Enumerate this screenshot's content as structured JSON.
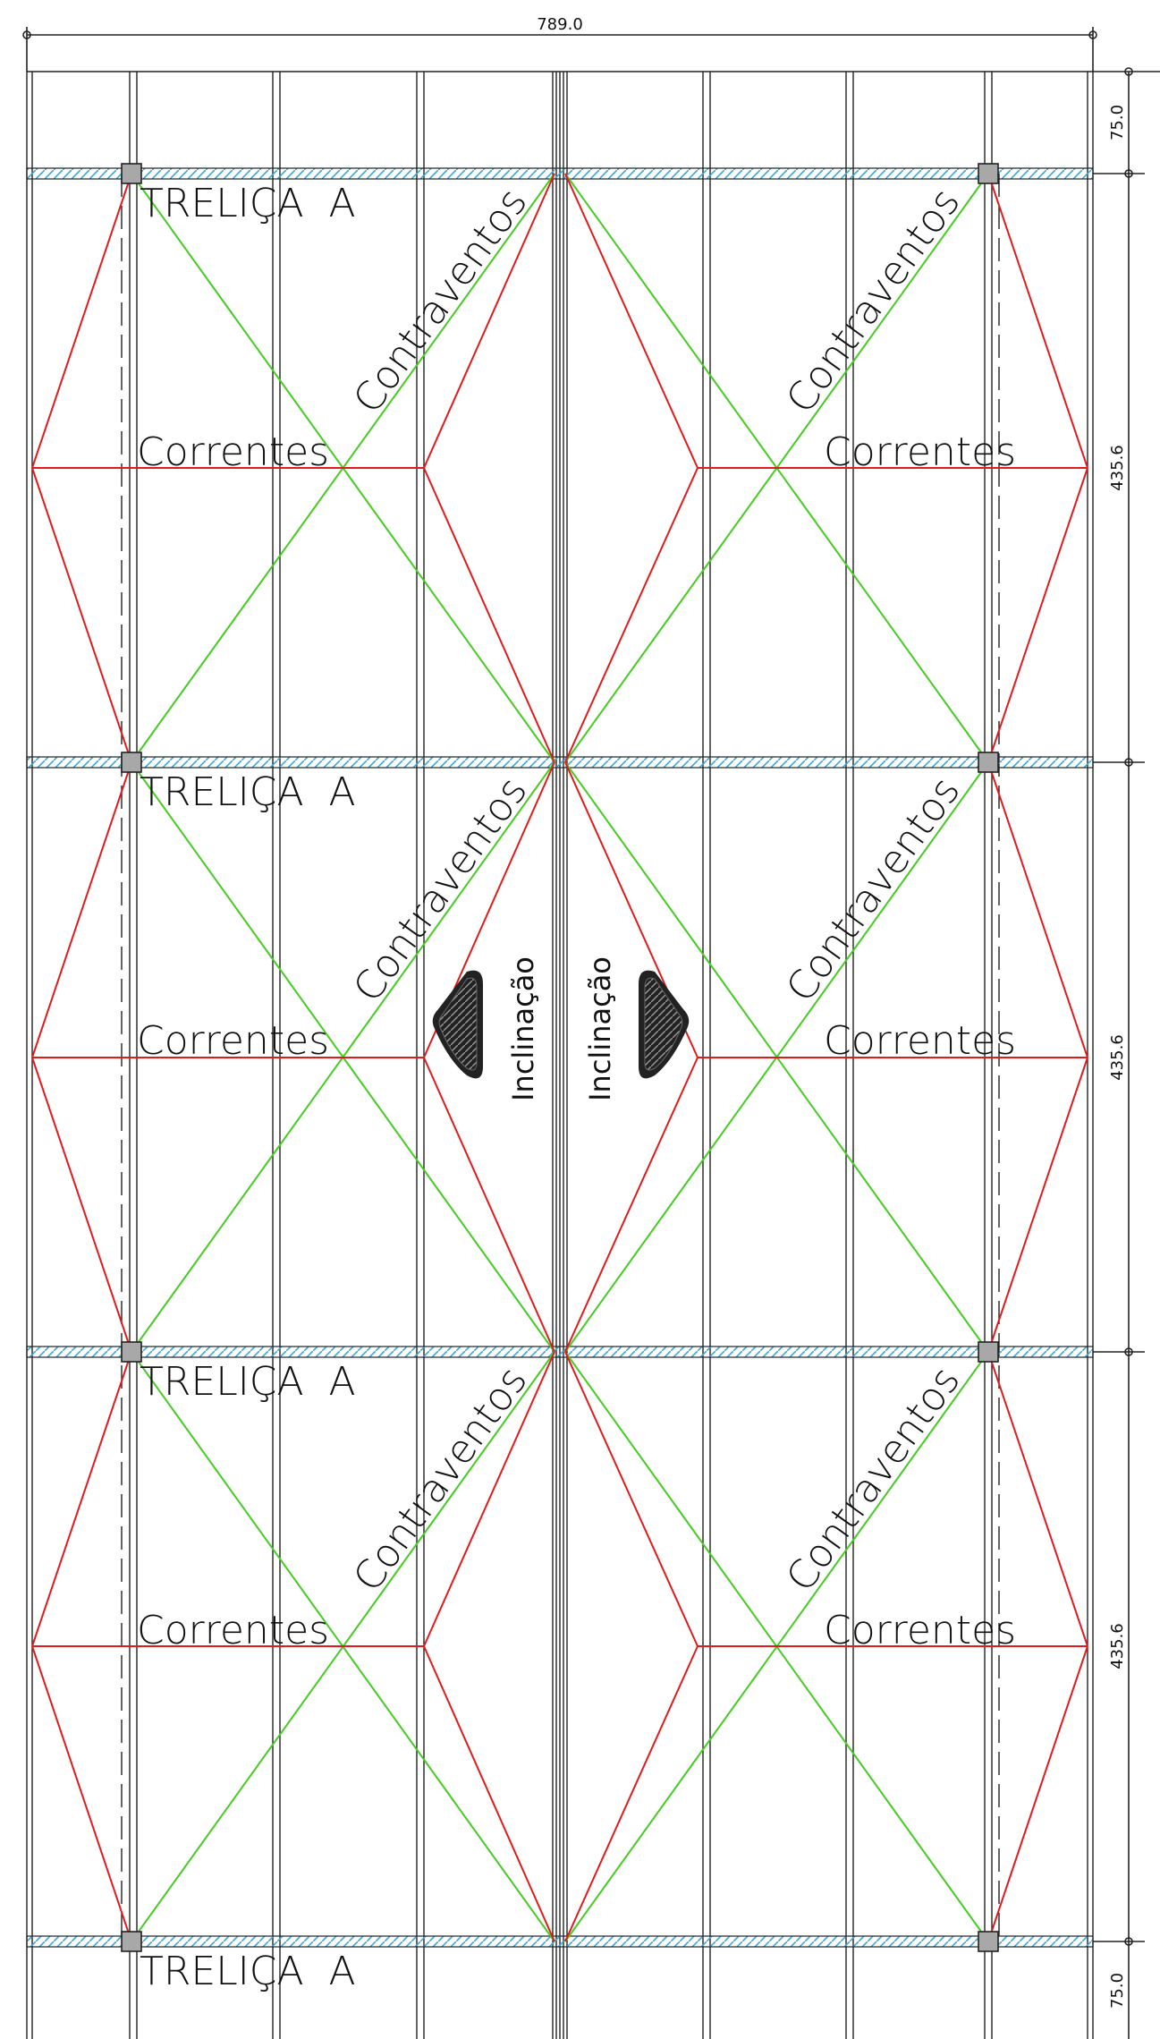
{
  "dimensions": {
    "top_width": "789.0",
    "right": [
      "75.0",
      "435.6",
      "435.6",
      "435.6",
      "75.0"
    ]
  },
  "labels": {
    "truss": "TRELIÇA  A",
    "purlins": "Correntes",
    "bracing": "Contraventos",
    "slope": "Inclinação"
  },
  "colors": {
    "bracing": "#44cc22",
    "purlins": "#e11b1b",
    "truss_hatch": "#3aa7d6",
    "structure": "#222222",
    "column": "#a8a8a8"
  },
  "truss_count": 4,
  "bay_count": 3,
  "sides": 2
}
